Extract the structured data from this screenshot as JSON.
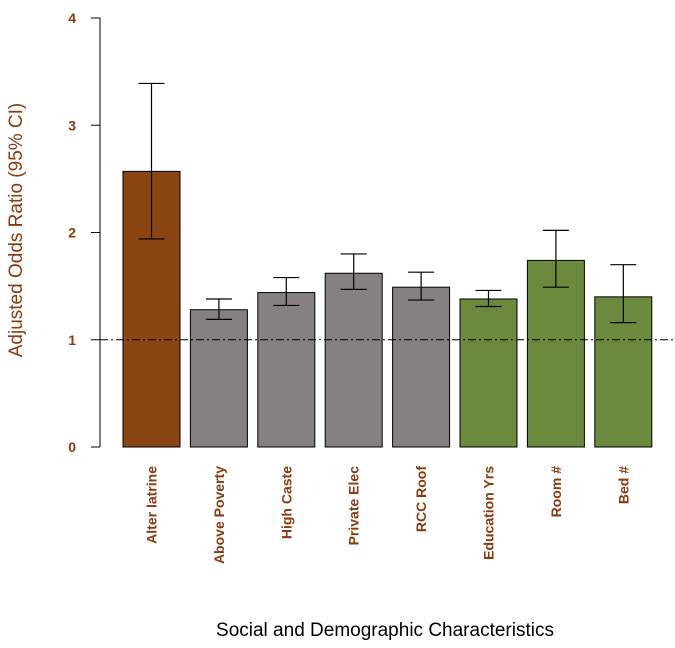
{
  "chart_data": {
    "type": "bar",
    "title": "",
    "xlabel": "Social and Demographic Characteristics",
    "ylabel": "Adjusted Odds Ratio (95% CI)",
    "categories": [
      "Alter latrine",
      "Above Poverty",
      "High Caste",
      "Private Elec",
      "RCC Roof",
      "Education Yrs",
      "Room #",
      "Bed #"
    ],
    "values": [
      2.57,
      1.28,
      1.44,
      1.62,
      1.49,
      1.38,
      1.74,
      1.4
    ],
    "ci_lower": [
      1.94,
      1.19,
      1.32,
      1.47,
      1.37,
      1.31,
      1.49,
      1.16
    ],
    "ci_upper": [
      3.39,
      1.38,
      1.58,
      1.8,
      1.63,
      1.46,
      2.02,
      1.7
    ],
    "bar_colors": [
      "#8b4513",
      "#878080",
      "#878080",
      "#878080",
      "#878080",
      "#6b8a3e",
      "#6b8a3e",
      "#6b8a3e"
    ],
    "ylim": [
      0,
      4
    ],
    "yticks": [
      0,
      1,
      2,
      3,
      4
    ],
    "reference_line": 1,
    "grid": false,
    "legend": "none",
    "label_color": "#8b3a0e",
    "axis_color": "#000000"
  }
}
